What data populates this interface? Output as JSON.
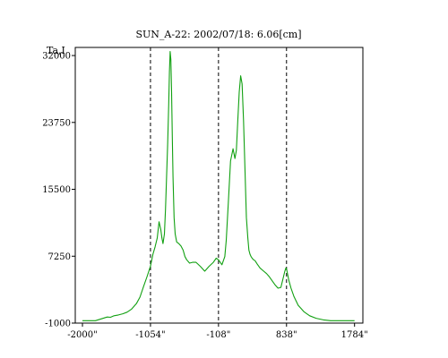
{
  "chart_data": {
    "type": "line",
    "title": "SUN_A-22: 2002/07/18: 6.06[cm]",
    "ylabel": "Ta,I",
    "xlabel": "",
    "xlim": [
      -2100,
      1900
    ],
    "ylim": [
      -1000,
      33000
    ],
    "x_ticks": [
      {
        "value": -2000,
        "label": "-2000\""
      },
      {
        "value": -1054,
        "label": "-1054\""
      },
      {
        "value": -108,
        "label": "-108\""
      },
      {
        "value": 838,
        "label": "838\""
      },
      {
        "value": 1784,
        "label": "1784\""
      }
    ],
    "y_ticks": [
      {
        "value": -1000,
        "label": "-1000"
      },
      {
        "value": 7250,
        "label": "7250"
      },
      {
        "value": 15500,
        "label": "15500"
      },
      {
        "value": 23750,
        "label": "23750"
      },
      {
        "value": 32000,
        "label": "32000"
      }
    ],
    "vlines": [
      -1054,
      -108,
      838
    ],
    "grid": false,
    "legend": "none",
    "series": [
      {
        "color": "#11a011",
        "x": [
          -2000,
          -1820,
          -1655,
          -1610,
          -1560,
          -1500,
          -1440,
          -1380,
          -1320,
          -1250,
          -1200,
          -1150,
          -1100,
          -1054,
          -1020,
          -990,
          -960,
          -935,
          -910,
          -895,
          -880,
          -860,
          -845,
          -830,
          -815,
          -800,
          -790,
          -780,
          -770,
          -760,
          -750,
          -740,
          -725,
          -710,
          -690,
          -660,
          -630,
          -600,
          -575,
          -550,
          -510,
          -470,
          -420,
          -360,
          -300,
          -240,
          -180,
          -140,
          -108,
          -60,
          -20,
          0,
          30,
          60,
          95,
          120,
          140,
          160,
          180,
          200,
          220,
          240,
          260,
          280,
          300,
          315,
          330,
          345,
          360,
          380,
          400,
          430,
          470,
          520,
          560,
          600,
          640,
          680,
          720,
          760,
          790,
          815,
          830,
          838,
          850,
          870,
          900,
          940,
          1000,
          1080,
          1160,
          1250,
          1350,
          1450,
          1550,
          1650,
          1784
        ],
        "y": [
          -700,
          -700,
          -250,
          -280,
          -100,
          0,
          150,
          350,
          700,
          1400,
          2200,
          3500,
          4800,
          6000,
          7500,
          8400,
          9500,
          11500,
          10500,
          9500,
          8800,
          10000,
          13000,
          17000,
          21000,
          26000,
          30000,
          32500,
          31500,
          27500,
          22000,
          17000,
          12000,
          10000,
          9000,
          8800,
          8500,
          8000,
          7200,
          6800,
          6400,
          6500,
          6500,
          6000,
          5400,
          6000,
          6500,
          7000,
          6800,
          6200,
          7200,
          9200,
          14000,
          19000,
          20500,
          19300,
          20300,
          24000,
          27500,
          29500,
          28500,
          24000,
          18000,
          12000,
          9500,
          8000,
          7500,
          7200,
          7000,
          6800,
          6700,
          6300,
          5800,
          5400,
          5100,
          4700,
          4200,
          3700,
          3300,
          3400,
          4500,
          5400,
          5800,
          5700,
          5200,
          4300,
          3300,
          2300,
          1200,
          400,
          -100,
          -400,
          -600,
          -700,
          -700,
          -700,
          -700
        ]
      }
    ]
  }
}
